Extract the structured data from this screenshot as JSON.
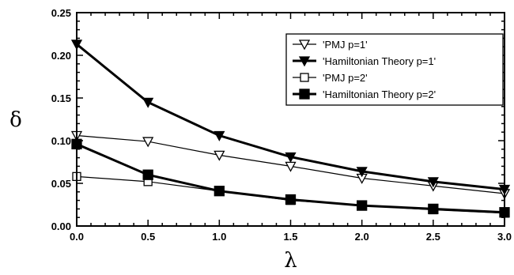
{
  "chart_data": {
    "type": "line",
    "title": "",
    "xlabel": "λ",
    "ylabel": "δ",
    "xlim": [
      0.0,
      3.0
    ],
    "ylim": [
      0.0,
      0.25
    ],
    "x_ticks": [
      "0.0",
      "0.5",
      "1.0",
      "1.5",
      "2.0",
      "2.5",
      "3.0"
    ],
    "y_ticks": [
      "0.00",
      "0.05",
      "0.10",
      "0.15",
      "0.20",
      "0.25"
    ],
    "grid": false,
    "legend_position": "top-right",
    "series": [
      {
        "name": "'PMJ p=1'",
        "marker": "triangle-down-open",
        "line_weight": "thin",
        "x": [
          0.0,
          0.5,
          1.0,
          1.5,
          2.0,
          2.5,
          3.0
        ],
        "y": [
          0.106,
          0.099,
          0.083,
          0.07,
          0.056,
          0.047,
          0.038
        ]
      },
      {
        "name": "'Hamiltonian Theory  p=1'",
        "marker": "triangle-down-filled",
        "line_weight": "thick",
        "x": [
          0.0,
          0.5,
          1.0,
          1.5,
          2.0,
          2.5,
          3.0
        ],
        "y": [
          0.213,
          0.145,
          0.106,
          0.081,
          0.064,
          0.052,
          0.043
        ]
      },
      {
        "name": "'PMJ p=2'",
        "marker": "square-open",
        "line_weight": "thin",
        "x": [
          0.0,
          0.5,
          1.0,
          1.5,
          2.0,
          2.5,
          3.0
        ],
        "y": [
          0.058,
          0.052,
          0.041,
          0.03,
          0.024,
          0.019,
          0.015
        ]
      },
      {
        "name": "'Hamiltonian Theory  p=2'",
        "marker": "square-filled",
        "line_weight": "thick",
        "x": [
          0.0,
          0.5,
          1.0,
          1.5,
          2.0,
          2.5,
          3.0
        ],
        "y": [
          0.096,
          0.06,
          0.041,
          0.031,
          0.024,
          0.02,
          0.016
        ]
      }
    ]
  }
}
